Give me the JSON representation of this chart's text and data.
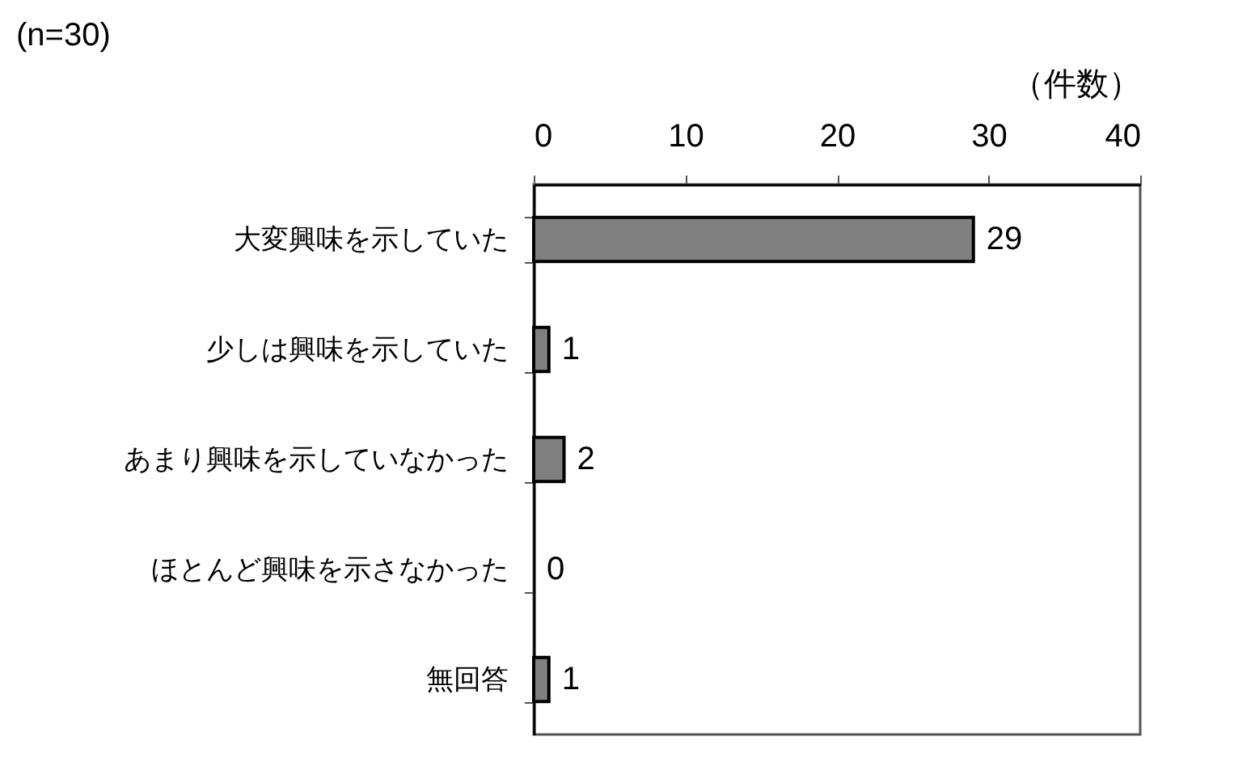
{
  "chart_data": {
    "type": "bar",
    "orientation": "horizontal",
    "title": "(n=30)",
    "xlabel": "（件数）",
    "categories": [
      "大変興味を示していた",
      "少しは興味を示していた",
      "あまり興味を示していなかった",
      "ほとんど興味を示さなかった",
      "無回答"
    ],
    "values": [
      29,
      1,
      2,
      0,
      1
    ],
    "color": "#808080",
    "xlim": [
      0,
      40
    ],
    "xticks": [
      0,
      10,
      20,
      30,
      40
    ],
    "data_labels": true,
    "grid": false
  }
}
